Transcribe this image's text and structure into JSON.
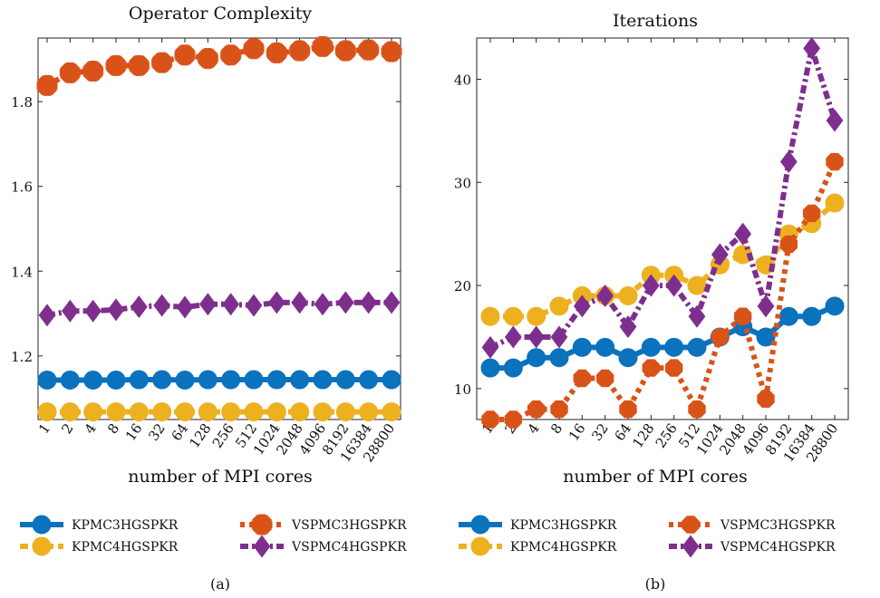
{
  "colors": {
    "KPMC3HGSPKR": "#0b72bd",
    "KPMC4HGSPKR": "#edb120",
    "VSPMC3HGSPKR": "#d95319",
    "VSPMC4HGSPKR": "#7e2f8e"
  },
  "chart_data": [
    {
      "type": "line",
      "title": "Operator Complexity",
      "xlabel": "number of MPI cores",
      "ylabel": "",
      "caption": "(a)",
      "categories": [
        "1",
        "2",
        "4",
        "8",
        "16",
        "32",
        "64",
        "128",
        "256",
        "512",
        "1024",
        "2048",
        "4096",
        "8192",
        "16384",
        "28800"
      ],
      "ylim": [
        1.05,
        1.95
      ],
      "yticks": [
        1.2,
        1.4,
        1.6,
        1.8
      ],
      "legend_position": "bottom",
      "series": [
        {
          "name": "KPMC3HGSPKR",
          "marker": "circle",
          "dash": "solid",
          "values": [
            1.143,
            1.143,
            1.143,
            1.143,
            1.144,
            1.144,
            1.143,
            1.144,
            1.144,
            1.144,
            1.144,
            1.144,
            1.144,
            1.144,
            1.144,
            1.144
          ]
        },
        {
          "name": "KPMC4HGSPKR",
          "marker": "circle",
          "dash": "dashed",
          "values": [
            1.068,
            1.068,
            1.068,
            1.068,
            1.068,
            1.068,
            1.068,
            1.068,
            1.068,
            1.068,
            1.068,
            1.068,
            1.068,
            1.068,
            1.068,
            1.068
          ]
        },
        {
          "name": "VSPMC3HGSPKR",
          "marker": "cross",
          "dash": "dotted",
          "values": [
            1.838,
            1.868,
            1.872,
            1.885,
            1.885,
            1.892,
            1.91,
            1.902,
            1.91,
            1.925,
            1.915,
            1.92,
            1.93,
            1.92,
            1.922,
            1.918
          ]
        },
        {
          "name": "VSPMC4HGSPKR",
          "marker": "diamond",
          "dash": "dashdot",
          "values": [
            1.296,
            1.306,
            1.306,
            1.309,
            1.316,
            1.319,
            1.315,
            1.322,
            1.322,
            1.319,
            1.326,
            1.326,
            1.322,
            1.326,
            1.326,
            1.326
          ]
        }
      ]
    },
    {
      "type": "line",
      "title": "Iterations",
      "xlabel": "number of MPI cores",
      "ylabel": "",
      "caption": "(b)",
      "categories": [
        "1",
        "2",
        "4",
        "8",
        "16",
        "32",
        "64",
        "128",
        "256",
        "512",
        "1024",
        "2048",
        "4096",
        "8192",
        "16384",
        "28800"
      ],
      "ylim": [
        7,
        44
      ],
      "yticks": [
        10,
        20,
        30,
        40
      ],
      "legend_position": "bottom",
      "series": [
        {
          "name": "KPMC3HGSPKR",
          "marker": "circle",
          "dash": "solid",
          "values": [
            12,
            12,
            13,
            13,
            14,
            14,
            13,
            14,
            14,
            14,
            15,
            16,
            15,
            17,
            17,
            18
          ]
        },
        {
          "name": "KPMC4HGSPKR",
          "marker": "circle",
          "dash": "dashed",
          "values": [
            17,
            17,
            17,
            18,
            19,
            19,
            19,
            21,
            21,
            20,
            22,
            23,
            22,
            25,
            26,
            28
          ]
        },
        {
          "name": "VSPMC3HGSPKR",
          "marker": "octagon",
          "dash": "dotted",
          "values": [
            7,
            7,
            8,
            8,
            11,
            11,
            8,
            12,
            12,
            8,
            15,
            17,
            9,
            24,
            27,
            32
          ]
        },
        {
          "name": "VSPMC4HGSPKR",
          "marker": "diamond",
          "dash": "dashdot",
          "values": [
            14,
            15,
            15,
            15,
            18,
            19,
            16,
            20,
            20,
            17,
            23,
            25,
            18,
            32,
            43,
            36
          ]
        }
      ]
    }
  ]
}
